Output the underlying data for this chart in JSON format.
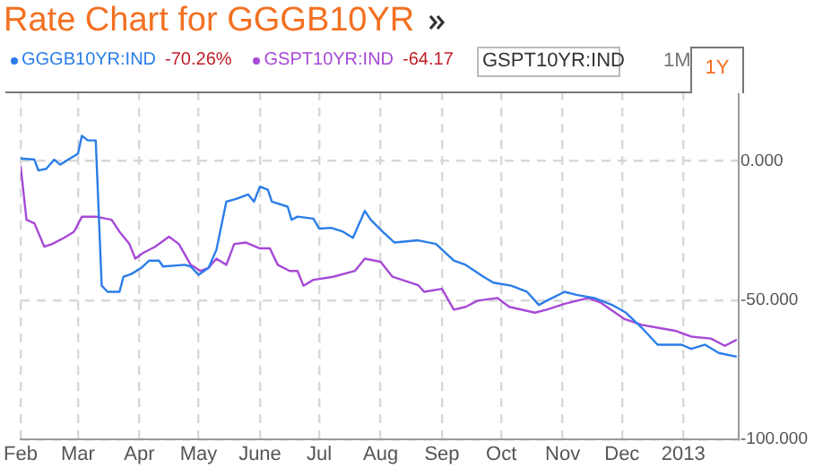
{
  "chart_data": {
    "type": "line",
    "title": "Rate Chart for GGGB10YR",
    "annotations": [
      "-70.26%",
      "-64.17",
      "GSPT10YR:IND",
      "1M",
      "1Y"
    ],
    "legend": "top left",
    "grid": true,
    "xlim": [
      "2012-02-01",
      "2013-01-29"
    ],
    "xticks": [
      {
        "value": "2012-02-01",
        "label": "Feb"
      },
      {
        "value": "2012-03-01",
        "label": "Mar"
      },
      {
        "value": "2012-04-01",
        "label": "Apr"
      },
      {
        "value": "2012-05-01",
        "label": "May"
      },
      {
        "value": "2012-06-01",
        "label": "June"
      },
      {
        "value": "2012-07-01",
        "label": "Jul"
      },
      {
        "value": "2012-08-01",
        "label": "Aug"
      },
      {
        "value": "2012-09-01",
        "label": "Sep"
      },
      {
        "value": "2012-10-01",
        "label": "Oct"
      },
      {
        "value": "2012-11-01",
        "label": "Nov"
      },
      {
        "value": "2012-12-01",
        "label": "Dec"
      },
      {
        "value": "2013-01-01",
        "label": "2013"
      }
    ],
    "ylim": [
      -100,
      25
    ],
    "yticks": [
      {
        "value": -100,
        "label": "-100.000"
      },
      {
        "value": -50,
        "label": "-50.000"
      },
      {
        "value": 0,
        "label": "0.000"
      }
    ],
    "series": [
      {
        "name": "GGGB10YR:IND",
        "color": "#2b7de9",
        "x": [
          "2012-02-01",
          "2012-02-08",
          "2012-02-10",
          "2012-02-14",
          "2012-02-18",
          "2012-02-21",
          "2012-02-26",
          "2012-03-01",
          "2012-03-03",
          "2012-03-06",
          "2012-03-10",
          "2012-03-13",
          "2012-03-16",
          "2012-03-22",
          "2012-03-24",
          "2012-03-28",
          "2012-04-02",
          "2012-04-06",
          "2012-04-11",
          "2012-04-13",
          "2012-04-24",
          "2012-04-27",
          "2012-05-01",
          "2012-05-06",
          "2012-05-10",
          "2012-05-15",
          "2012-05-20",
          "2012-05-26",
          "2012-05-29",
          "2012-06-01",
          "2012-06-05",
          "2012-06-07",
          "2012-06-15",
          "2012-06-17",
          "2012-06-20",
          "2012-06-28",
          "2012-07-01",
          "2012-07-07",
          "2012-07-13",
          "2012-07-18",
          "2012-07-24",
          "2012-07-27",
          "2012-08-02",
          "2012-08-08",
          "2012-08-20",
          "2012-08-29",
          "2012-09-07",
          "2012-09-13",
          "2012-09-22",
          "2012-09-27",
          "2012-10-06",
          "2012-10-14",
          "2012-10-20",
          "2012-10-24",
          "2012-11-02",
          "2012-11-08",
          "2012-11-17",
          "2012-11-26",
          "2012-12-03",
          "2012-12-11",
          "2012-12-19",
          "2012-12-31",
          "2013-01-05",
          "2013-01-12",
          "2013-01-19",
          "2013-01-28"
        ],
        "values": [
          0.9,
          0.5,
          -3.4,
          -2.8,
          0.5,
          -1.3,
          0.9,
          2.6,
          9.1,
          7.4,
          7.4,
          -44.8,
          -47,
          -47,
          -41.6,
          -40.6,
          -38.4,
          -35.8,
          -35.8,
          -37.9,
          -37.3,
          -37.9,
          -40.9,
          -38.4,
          -31.9,
          -14.6,
          -13.6,
          -12,
          -14.6,
          -9.2,
          -10.3,
          -14.6,
          -16.4,
          -21.1,
          -20,
          -20.7,
          -24.3,
          -24,
          -25.4,
          -27.6,
          -17.9,
          -21.1,
          -25.4,
          -29.3,
          -28.5,
          -29.8,
          -35.8,
          -37.3,
          -41.6,
          -43.7,
          -44.8,
          -47,
          -51.7,
          -50.2,
          -47,
          -48.1,
          -49.2,
          -51.7,
          -54.5,
          -59.9,
          -66,
          -66,
          -67.5,
          -66,
          -69,
          -70.3
        ]
      },
      {
        "name": "GSPT10YR:IND",
        "color": "#a64ad6",
        "x": [
          "2012-02-01",
          "2012-02-04",
          "2012-02-08",
          "2012-02-13",
          "2012-02-17",
          "2012-02-23",
          "2012-02-28",
          "2012-03-03",
          "2012-03-10",
          "2012-03-18",
          "2012-03-22",
          "2012-03-27",
          "2012-03-30",
          "2012-04-03",
          "2012-04-09",
          "2012-04-16",
          "2012-04-21",
          "2012-04-27",
          "2012-05-02",
          "2012-05-06",
          "2012-05-10",
          "2012-05-15",
          "2012-05-19",
          "2012-05-25",
          "2012-06-01",
          "2012-06-06",
          "2012-06-10",
          "2012-06-16",
          "2012-06-20",
          "2012-06-23",
          "2012-06-28",
          "2012-07-08",
          "2012-07-19",
          "2012-07-24",
          "2012-08-01",
          "2012-08-07",
          "2012-08-20",
          "2012-08-23",
          "2012-09-01",
          "2012-09-07",
          "2012-09-13",
          "2012-09-19",
          "2012-09-29",
          "2012-10-05",
          "2012-10-18",
          "2012-10-24",
          "2012-11-02",
          "2012-11-14",
          "2012-11-20",
          "2012-12-02",
          "2012-12-11",
          "2012-12-19",
          "2012-12-28",
          "2013-01-05",
          "2013-01-15",
          "2013-01-22",
          "2013-01-28"
        ],
        "values": [
          -1.7,
          -21.1,
          -22.4,
          -30.8,
          -29.8,
          -27.6,
          -25.4,
          -20,
          -20,
          -21.1,
          -25.4,
          -29.8,
          -35.1,
          -33,
          -30.8,
          -27.2,
          -29.8,
          -37.3,
          -39.5,
          -38.4,
          -35.1,
          -37.3,
          -29.8,
          -29.3,
          -31.4,
          -31.4,
          -37.3,
          -39.5,
          -39.5,
          -44.8,
          -42.7,
          -41.6,
          -39.5,
          -35.1,
          -36.2,
          -41.6,
          -44.6,
          -47,
          -45.9,
          -53.4,
          -52.4,
          -50.2,
          -49.2,
          -52.4,
          -54.5,
          -53.4,
          -51.3,
          -49.2,
          -50.8,
          -56.7,
          -58.9,
          -59.9,
          -61,
          -63.1,
          -63.8,
          -66.4,
          -64.2
        ]
      }
    ]
  }
}
